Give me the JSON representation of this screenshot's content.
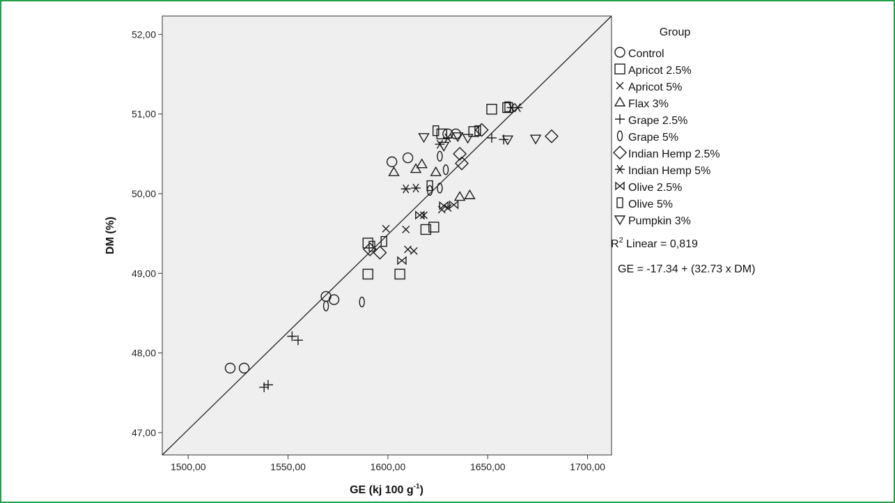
{
  "chart_data": {
    "type": "scatter",
    "xlabel": "GE (kj 100 g",
    "xlabel_sup": "-1",
    "xlabel_end": ")",
    "ylabel": "DM (%)",
    "xlim": [
      1487,
      1712
    ],
    "ylim": [
      46.72,
      52.23
    ],
    "x_ticks": [
      1500,
      1550,
      1600,
      1650,
      1700
    ],
    "x_tick_labels": [
      "1500,00",
      "1550,00",
      "1600,00",
      "1650,00",
      "1700,00"
    ],
    "y_ticks": [
      47,
      48,
      49,
      50,
      51,
      52
    ],
    "y_tick_labels": [
      "47,00",
      "48,00",
      "49,00",
      "50,00",
      "51,00",
      "52,00"
    ],
    "plot_background": "#efefef",
    "marker_color": "#1a1a1a",
    "fit_line": {
      "points": [
        [
          1487,
          46.72
        ],
        [
          1712,
          52.23
        ]
      ],
      "r2_text": "R",
      "r2_sup": "2",
      "r2_rest": " Linear = 0,819",
      "equation": "GE = -17.34 + (32.73 x DM)"
    },
    "legend": {
      "title": "Group",
      "position": "right"
    },
    "series": [
      {
        "name": "Control",
        "marker": "circle",
        "points": [
          [
            1521,
            47.81
          ],
          [
            1528,
            47.81
          ],
          [
            1569,
            48.71
          ],
          [
            1573,
            48.67
          ],
          [
            1602,
            50.4
          ],
          [
            1610,
            50.45
          ],
          [
            1630,
            50.75
          ],
          [
            1634,
            50.75
          ]
        ]
      },
      {
        "name": "Apricot 2.5%",
        "marker": "square",
        "points": [
          [
            1590,
            48.99
          ],
          [
            1606,
            48.99
          ],
          [
            1590,
            49.38
          ],
          [
            1619,
            49.55
          ],
          [
            1623,
            49.58
          ],
          [
            1627,
            50.75
          ],
          [
            1643,
            50.78
          ],
          [
            1652,
            51.06
          ],
          [
            1660,
            51.08
          ]
        ]
      },
      {
        "name": "Apricot 5%",
        "marker": "x",
        "points": [
          [
            1599,
            49.56
          ],
          [
            1609,
            49.55
          ],
          [
            1610,
            49.3
          ],
          [
            1613,
            49.28
          ],
          [
            1618,
            49.73
          ],
          [
            1627,
            49.8
          ],
          [
            1630,
            49.82
          ]
        ]
      },
      {
        "name": "Flax 3%",
        "marker": "triangle",
        "points": [
          [
            1603,
            50.27
          ],
          [
            1614,
            50.31
          ],
          [
            1617,
            50.37
          ],
          [
            1624,
            50.27
          ],
          [
            1636,
            49.96
          ],
          [
            1641,
            49.98
          ]
        ]
      },
      {
        "name": "Grape 2.5%",
        "marker": "plus",
        "points": [
          [
            1538,
            47.57
          ],
          [
            1540,
            47.6
          ],
          [
            1552,
            48.21
          ],
          [
            1555,
            48.16
          ],
          [
            1652,
            50.7
          ],
          [
            1658,
            50.68
          ]
        ]
      },
      {
        "name": "Grape 5%",
        "marker": "ellipse",
        "points": [
          [
            1569,
            48.59
          ],
          [
            1587,
            48.64
          ],
          [
            1621,
            50.04
          ],
          [
            1626,
            50.07
          ],
          [
            1629,
            50.3
          ],
          [
            1626,
            50.47
          ]
        ]
      },
      {
        "name": "Indian Hemp 2.5%",
        "marker": "diamond",
        "points": [
          [
            1591,
            49.3
          ],
          [
            1596,
            49.26
          ],
          [
            1637,
            50.38
          ],
          [
            1636,
            50.5
          ],
          [
            1647,
            50.8
          ],
          [
            1682,
            50.72
          ]
        ]
      },
      {
        "name": "Indian Hemp 5%",
        "marker": "star",
        "points": [
          [
            1609,
            50.06
          ],
          [
            1614,
            50.07
          ],
          [
            1626,
            50.62
          ],
          [
            1630,
            50.7
          ],
          [
            1662,
            51.08
          ],
          [
            1665,
            51.08
          ]
        ]
      },
      {
        "name": "Olive 2.5%",
        "marker": "bowtie",
        "points": [
          [
            1607,
            49.16
          ],
          [
            1616,
            49.73
          ],
          [
            1628,
            49.85
          ],
          [
            1633,
            49.86
          ]
        ]
      },
      {
        "name": "Olive 5%",
        "marker": "rect",
        "points": [
          [
            1592,
            49.34
          ],
          [
            1598,
            49.4
          ],
          [
            1621,
            50.1
          ],
          [
            1624,
            50.79
          ],
          [
            1645,
            50.79
          ],
          [
            1660,
            51.09
          ]
        ]
      },
      {
        "name": "Pumpkin 3%",
        "marker": "tri-down",
        "points": [
          [
            1618,
            50.71
          ],
          [
            1628,
            50.6
          ],
          [
            1635,
            50.72
          ],
          [
            1640,
            50.7
          ],
          [
            1660,
            50.68
          ],
          [
            1674,
            50.69
          ]
        ]
      }
    ]
  }
}
